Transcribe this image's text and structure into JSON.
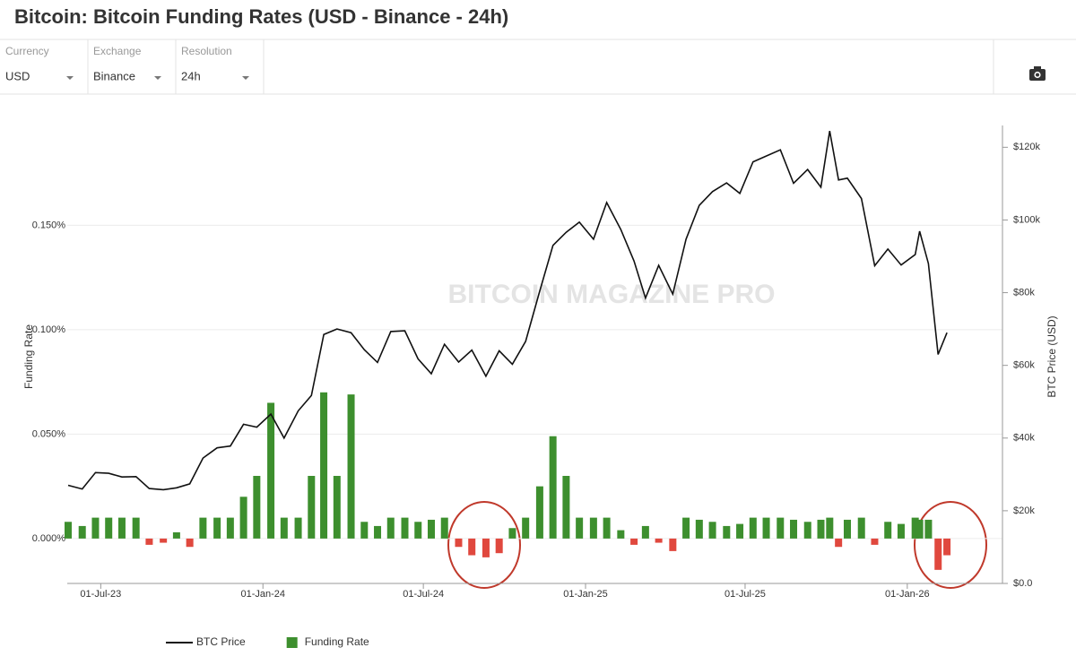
{
  "title": "Bitcoin: Bitcoin Funding Rates (USD - Binance - 24h)",
  "controls": [
    {
      "label": "Currency",
      "value": "USD"
    },
    {
      "label": "Exchange",
      "value": "Binance"
    },
    {
      "label": "Resolution",
      "value": "24h"
    }
  ],
  "chart_data": {
    "type": "combo",
    "watermark": "BITCOIN MAGAZINE PRO",
    "y_label": "Funding Rate",
    "y2_label": "BTC Price (USD)",
    "x": [
      "2023-05-25",
      "2023-06-10",
      "2023-06-25",
      "2023-07-10",
      "2023-07-25",
      "2023-08-10",
      "2023-08-25",
      "2023-09-10",
      "2023-09-25",
      "2023-10-10",
      "2023-10-25",
      "2023-11-10",
      "2023-11-25",
      "2023-12-10",
      "2023-12-25",
      "2024-01-10",
      "2024-01-25",
      "2024-02-10",
      "2024-02-25",
      "2024-03-10",
      "2024-03-25",
      "2024-04-10",
      "2024-04-25",
      "2024-05-10",
      "2024-05-25",
      "2024-06-10",
      "2024-06-25",
      "2024-07-10",
      "2024-07-25",
      "2024-08-10",
      "2024-08-25",
      "2024-09-10",
      "2024-09-25",
      "2024-10-10",
      "2024-10-25",
      "2024-11-10",
      "2024-11-25",
      "2024-12-10",
      "2024-12-25",
      "2025-01-10",
      "2025-01-25",
      "2025-02-10",
      "2025-02-25",
      "2025-03-10",
      "2025-03-25",
      "2025-04-10",
      "2025-04-25",
      "2025-05-10",
      "2025-05-25",
      "2025-06-10",
      "2025-06-25",
      "2025-07-10",
      "2025-07-25",
      "2025-08-10",
      "2025-08-25",
      "2025-09-10",
      "2025-09-25",
      "2025-10-05",
      "2025-10-15",
      "2025-10-25",
      "2025-11-10",
      "2025-11-25",
      "2025-12-10",
      "2025-12-25",
      "2026-01-10",
      "2026-01-15",
      "2026-01-25",
      "2026-02-05",
      "2026-02-15"
    ],
    "series": [
      {
        "name": "BTC Price",
        "type": "line",
        "axis": "y2",
        "color": "#111111",
        "values": [
          27000,
          26000,
          30500,
          30300,
          29300,
          29400,
          26100,
          25800,
          26300,
          27400,
          34500,
          37300,
          37800,
          43800,
          43000,
          46600,
          40000,
          47500,
          51700,
          68500,
          70000,
          69000,
          64300,
          60800,
          69300,
          69500,
          61800,
          57700,
          65800,
          60900,
          64200,
          57000,
          64000,
          60300,
          66600,
          80400,
          93000,
          96600,
          99400,
          94700,
          104800,
          97400,
          88700,
          78500,
          87500,
          79600,
          94700,
          104000,
          107800,
          110200,
          107300,
          116000,
          117600,
          119300,
          110100,
          113900,
          109000,
          124500,
          111000,
          111500,
          105900,
          87400,
          92000,
          87600,
          90500,
          96900,
          88000,
          63000,
          69000
        ]
      },
      {
        "name": "Funding Rate",
        "type": "bar",
        "color": "#3d8f2e",
        "negative_color": "#e0483e",
        "values": [
          0.008,
          0.006,
          0.01,
          0.01,
          0.01,
          0.01,
          -0.003,
          -0.002,
          0.003,
          -0.004,
          0.01,
          0.01,
          0.01,
          0.02,
          0.03,
          0.065,
          0.01,
          0.01,
          0.03,
          0.07,
          0.03,
          0.069,
          0.008,
          0.006,
          0.01,
          0.01,
          0.008,
          0.009,
          0.01,
          -0.004,
          -0.008,
          -0.009,
          -0.007,
          0.005,
          0.01,
          0.025,
          0.049,
          0.03,
          0.01,
          0.01,
          0.01,
          0.004,
          -0.003,
          0.006,
          -0.002,
          -0.006,
          0.01,
          0.009,
          0.008,
          0.006,
          0.007,
          0.01,
          0.01,
          0.01,
          0.009,
          0.008,
          0.009,
          0.01,
          -0.004,
          0.009,
          0.01,
          -0.003,
          0.008,
          0.007,
          0.01,
          0.009,
          0.009,
          -0.015,
          -0.008
        ]
      }
    ],
    "xlim": [
      "2023-05-24",
      "2026-04-19"
    ],
    "xticks": [
      {
        "value": "2023-07-01",
        "label": "01-Jul-23"
      },
      {
        "value": "2024-01-01",
        "label": "01-Jan-24"
      },
      {
        "value": "2024-07-01",
        "label": "01-Jul-24"
      },
      {
        "value": "2025-01-01",
        "label": "01-Jan-25"
      },
      {
        "value": "2025-07-01",
        "label": "01-Jul-25"
      },
      {
        "value": "2026-01-01",
        "label": "01-Jan-26"
      }
    ],
    "ylim": [
      -0.0215,
      0.1978
    ],
    "yticks": [
      {
        "value": 0,
        "label": "0.000%"
      },
      {
        "value": 0.05,
        "label": "0.050%"
      },
      {
        "value": 0.1,
        "label": "0.100%"
      },
      {
        "value": 0.15,
        "label": "0.150%"
      }
    ],
    "y2lim": [
      0,
      126000
    ],
    "y2ticks": [
      {
        "value": 0,
        "label": "$0.0"
      },
      {
        "value": 20000,
        "label": "$20k"
      },
      {
        "value": 40000,
        "label": "$40k"
      },
      {
        "value": 60000,
        "label": "$60k"
      },
      {
        "value": 80000,
        "label": "$80k"
      },
      {
        "value": 100000,
        "label": "$100k"
      },
      {
        "value": 120000,
        "label": "$120k"
      }
    ],
    "grid": true,
    "legend": "bottom"
  }
}
